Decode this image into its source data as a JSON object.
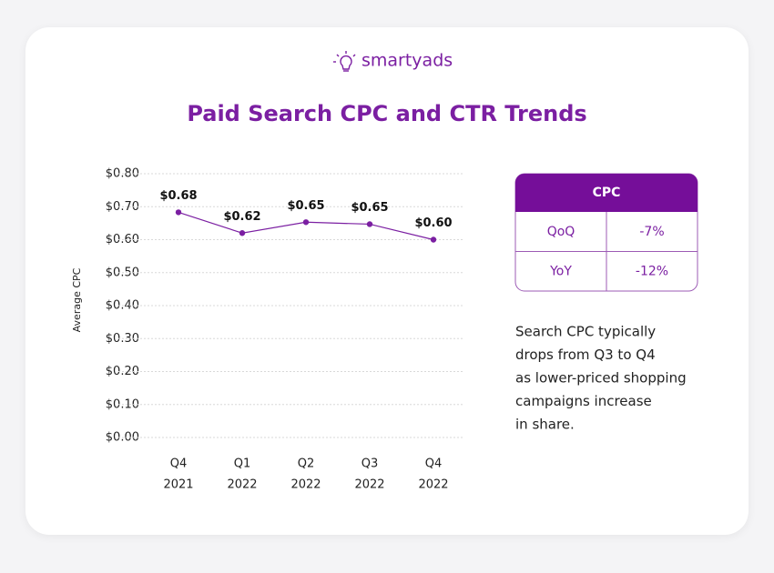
{
  "chart_data": {
    "type": "line",
    "brand": "smartyads",
    "title": "Paid Search CPC and CTR Trends",
    "ylabel": "Average CPC",
    "categories": [
      [
        "Q4",
        "2021"
      ],
      [
        "Q1",
        "2022"
      ],
      [
        "Q2",
        "2022"
      ],
      [
        "Q3",
        "2022"
      ],
      [
        "Q4",
        "2022"
      ]
    ],
    "values": [
      0.683,
      0.62,
      0.653,
      0.647,
      0.6
    ],
    "value_labels": [
      "$0.68",
      "$0.62",
      "$0.65",
      "$0.65",
      "$0.60"
    ],
    "color": "#7b1fa2",
    "ylim": [
      0,
      0.8
    ],
    "yticks": [
      {
        "value": 0,
        "label": "$0.00"
      },
      {
        "value": 0.1,
        "label": "$0.10"
      },
      {
        "value": 0.2,
        "label": "$0.20"
      },
      {
        "value": 0.3,
        "label": "$0.30"
      },
      {
        "value": 0.4,
        "label": "$0.40"
      },
      {
        "value": 0.5,
        "label": "$0.50"
      },
      {
        "value": 0.6,
        "label": "$0.60"
      },
      {
        "value": 0.7,
        "label": "$0.70"
      },
      {
        "value": 0.8,
        "label": "$0.80"
      }
    ],
    "grid": true,
    "table": {
      "header": "CPC",
      "rows": [
        [
          "QoQ",
          "-7%"
        ],
        [
          "YoY",
          "-12%"
        ]
      ]
    },
    "note": [
      "Search CPC typically",
      "drops from Q3 to Q4",
      "as lower-priced shopping",
      "campaigns increase",
      "in share."
    ]
  }
}
